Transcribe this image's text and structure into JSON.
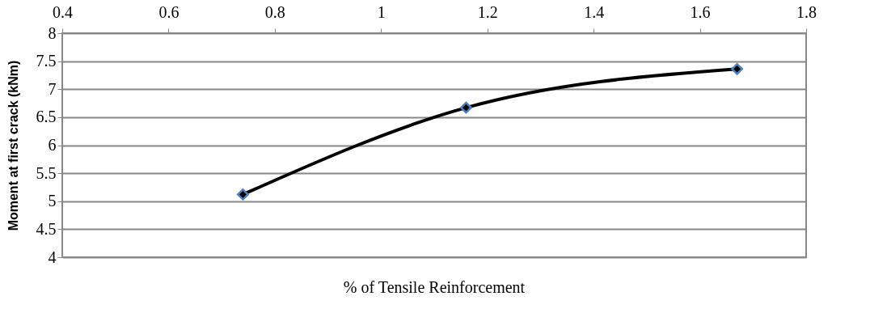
{
  "chart_data": {
    "type": "line",
    "xlabel": "% of Tensile  Reinforcement",
    "ylabel": "Moment at first crack (kNm)",
    "x": [
      0.74,
      1.16,
      1.67
    ],
    "series": [
      {
        "color": "#000000",
        "values": [
          5.12,
          6.67,
          7.36
        ]
      }
    ],
    "xlim": [
      0.4,
      1.8
    ],
    "xticks": [
      0.4,
      0.6,
      0.8,
      1,
      1.2,
      1.4,
      1.6,
      1.8
    ],
    "ylim": [
      4,
      8
    ],
    "yticks": [
      4,
      4.5,
      5,
      5.5,
      6,
      6.5,
      7,
      7.5,
      8
    ],
    "grid": "y",
    "marker": "diamond",
    "line_style": "solid",
    "legend": false
  }
}
